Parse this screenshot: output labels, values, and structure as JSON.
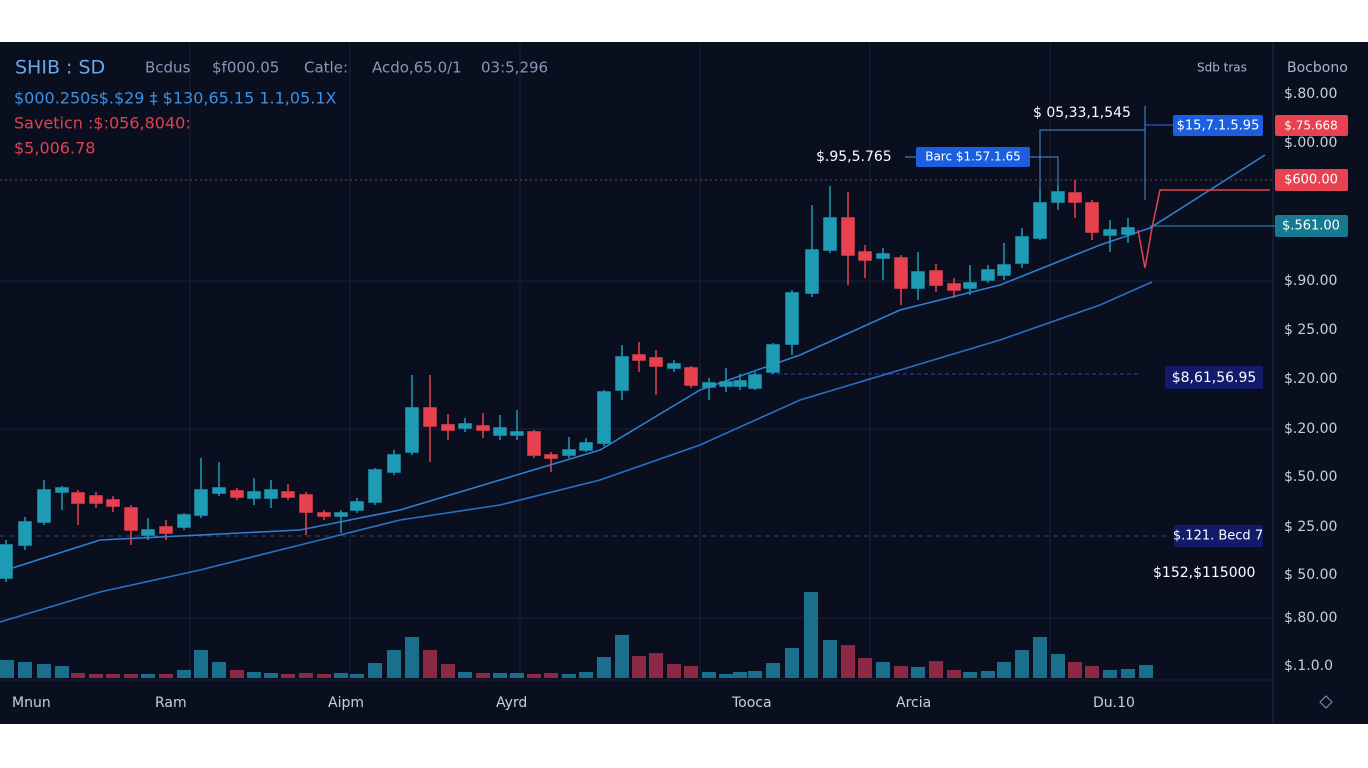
{
  "header": {
    "symbol": "SHIB : SD",
    "fields": [
      "Bcdus",
      "$f000.05",
      "Catle:",
      "Acdo,65.0/1",
      "03:5,296"
    ],
    "right": [
      "Sdb tras",
      "Bocbono"
    ]
  },
  "info": {
    "line1": "$000.250s$.$29 ‡ $130,65.15 1.1,05.1X",
    "line2": "Saveticn :$:056,8040:",
    "line3": "$5,006.78"
  },
  "price_axis": {
    "labels": [
      "$.80.00",
      "$.00.00",
      "$.90.00",
      "$ 25.00",
      "$.20.00",
      "$.20.00",
      "$.50.00",
      "$ 25.00",
      "$ 50.00",
      "$.80.00",
      "$.1.0.0"
    ]
  },
  "time_axis": {
    "labels": [
      "Mnun",
      "Ram",
      "Aipm",
      "Ayrd",
      "Tooca",
      "Arcia",
      "Du.10"
    ]
  },
  "tags": {
    "top_blue": "$15,7.1.5.95",
    "top_red": "$.75.668",
    "mid_red": "$600.00",
    "current": "$.561.00",
    "navy_mid": "$8,61,56.95",
    "navy_low": "$.121. Becd 7",
    "low_text": "$152,$115000",
    "peak_text": "$ 05,33,1,545",
    "left_text": "$.95,5.765",
    "bracket_tag": "Barc $1.57.1.65"
  }
}
